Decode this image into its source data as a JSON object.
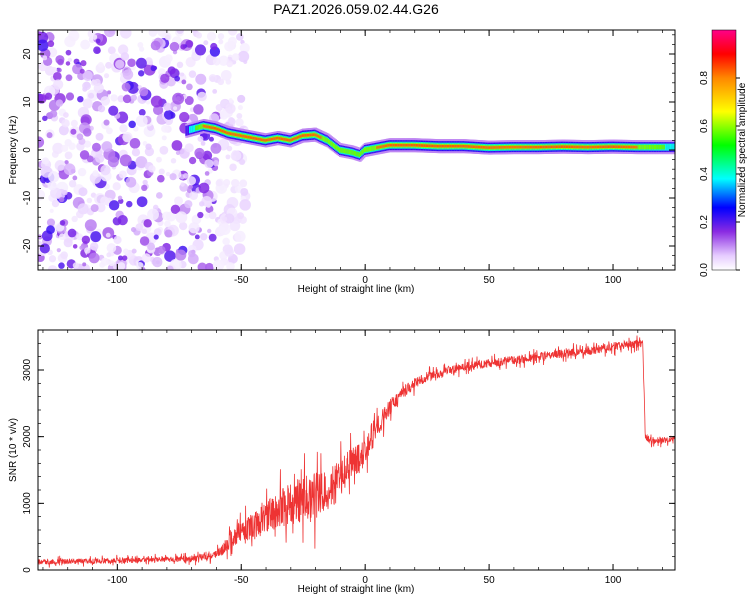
{
  "title": "PAZ1.2026.059.02.44.G26",
  "colors": {
    "signal": "#ee3333",
    "axis": "#000000",
    "background": "#ffffff"
  },
  "spectrogram": {
    "xlabel": "Height of straight line (km)",
    "ylabel": "Frequency (Hz)",
    "xlim": [
      -132,
      125
    ],
    "ylim": [
      -25,
      25
    ],
    "xticks": [
      -100,
      -50,
      0,
      50,
      100
    ],
    "yticks": [
      -20,
      -10,
      0,
      10,
      20
    ],
    "colorbar": {
      "label": "Normalized spectral amplitude",
      "ticks": [
        "0.0",
        "0.2",
        "0.4",
        "0.6",
        "0.8"
      ],
      "range": [
        0,
        1
      ]
    },
    "noise_region_x": [
      -132,
      -60
    ],
    "ridge": {
      "x": [
        -72,
        -65,
        -60,
        -55,
        -50,
        -45,
        -40,
        -35,
        -30,
        -25,
        -20,
        -15,
        -10,
        -5,
        -2,
        0,
        5,
        10,
        20,
        30,
        40,
        50,
        60,
        70,
        80,
        90,
        100,
        110,
        120,
        125
      ],
      "y": [
        4,
        5,
        4.5,
        3.5,
        3,
        2.5,
        2,
        2.5,
        2,
        3,
        3.2,
        2,
        0,
        -0.5,
        -1,
        0,
        0.5,
        1,
        1,
        0.8,
        0.8,
        0.5,
        0.6,
        0.6,
        0.7,
        0.6,
        0.7,
        0.6,
        0.6,
        0.6
      ],
      "amp": [
        0.3,
        0.8,
        0.9,
        0.85,
        0.85,
        0.9,
        0.9,
        0.85,
        0.9,
        0.9,
        0.85,
        0.75,
        0.7,
        0.65,
        0.6,
        0.7,
        0.8,
        0.9,
        0.95,
        0.95,
        0.9,
        0.85,
        0.8,
        0.9,
        0.95,
        0.85,
        0.95,
        0.8,
        0.6,
        0.5
      ]
    }
  },
  "snr_plot": {
    "type": "line",
    "xlabel": "Height of straight line (km)",
    "ylabel": "SNR (10 * v/v)",
    "xlim": [
      -132,
      125
    ],
    "ylim": [
      0,
      3600
    ],
    "xticks": [
      -100,
      -50,
      0,
      50,
      100
    ],
    "yticks": [
      0,
      1000,
      2000,
      3000
    ],
    "x": [
      -132,
      -120,
      -110,
      -100,
      -90,
      -80,
      -70,
      -60,
      -55,
      -50,
      -45,
      -40,
      -35,
      -30,
      -25,
      -20,
      -15,
      -10,
      -5,
      0,
      5,
      10,
      15,
      20,
      25,
      30,
      40,
      50,
      60,
      70,
      80,
      90,
      100,
      105,
      110,
      112,
      113,
      115,
      120,
      125
    ],
    "y": [
      120,
      130,
      135,
      140,
      150,
      155,
      170,
      230,
      400,
      600,
      650,
      800,
      900,
      1000,
      1050,
      1100,
      1200,
      1400,
      1600,
      1750,
      2150,
      2450,
      2650,
      2800,
      2900,
      2950,
      3050,
      3100,
      3150,
      3200,
      3250,
      3280,
      3350,
      3380,
      3400,
      3380,
      2000,
      1950,
      1950,
      1980
    ],
    "noise": [
      50,
      50,
      50,
      50,
      50,
      50,
      60,
      80,
      150,
      200,
      250,
      300,
      350,
      400,
      450,
      450,
      400,
      350,
      300,
      250,
      200,
      150,
      120,
      100,
      90,
      80,
      80,
      80,
      80,
      80,
      80,
      80,
      80,
      80,
      80,
      80,
      60,
      60,
      60,
      60
    ]
  }
}
